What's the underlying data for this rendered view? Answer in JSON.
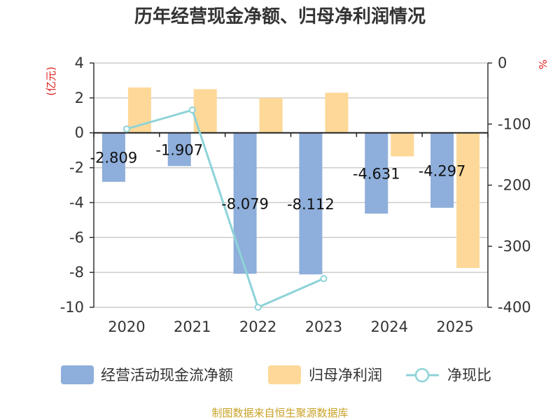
{
  "chart_data": {
    "type": "bar",
    "title": "历年经营现金净额、归母净利润情况",
    "categories": [
      "2020",
      "2021",
      "2022",
      "2023",
      "2024",
      "2025"
    ],
    "left_axis": {
      "unit": "(亿元)",
      "range": [
        -10,
        4
      ],
      "ticks": [
        4,
        2,
        0,
        -2,
        -4,
        -6,
        -8,
        -10
      ],
      "tick_labels": [
        "4",
        "2",
        "0",
        "-2",
        "-4",
        "-6",
        "-8",
        "-10"
      ]
    },
    "right_axis": {
      "unit": "%",
      "range": [
        -400,
        0
      ],
      "ticks": [
        0,
        -100,
        -200,
        -300,
        -400
      ],
      "tick_labels": [
        "0",
        "-100",
        "-200",
        "-300",
        "-400"
      ]
    },
    "series": [
      {
        "name": "经营活动现金流净额",
        "kind": "bar",
        "axis": "left",
        "color": "#8eaedb",
        "values": [
          -2.809,
          -1.907,
          -8.079,
          -8.112,
          -4.631,
          -4.297
        ],
        "data_labels": [
          "-2.809",
          "-1.907",
          "-8.079",
          "-8.112",
          "-4.631",
          "-4.297"
        ]
      },
      {
        "name": "归母净利润",
        "kind": "bar",
        "axis": "left",
        "color": "#fed898",
        "values": [
          2.6,
          2.5,
          2.0,
          2.3,
          -1.35,
          -7.75
        ]
      },
      {
        "name": "净现比",
        "kind": "line",
        "axis": "right",
        "color": "#8dd3d8",
        "values": [
          -108,
          -77,
          -400,
          -353,
          null,
          null
        ]
      }
    ],
    "source": "制图数据来自恒生聚源数据库",
    "colors": {
      "title": "#333333",
      "axis_unit": "#e02020",
      "source": "#c9a227",
      "grid": "#cccccc"
    }
  }
}
